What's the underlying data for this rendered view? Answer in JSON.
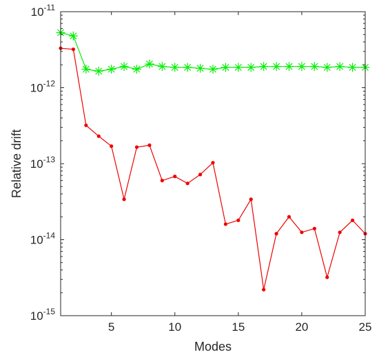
{
  "chart_data": {
    "type": "line",
    "title": "",
    "xlabel": "Modes",
    "ylabel": "Relative drift",
    "xlim": [
      1,
      25
    ],
    "ylim": [
      1e-15,
      1e-11
    ],
    "yscale": "log",
    "grid": false,
    "legend": "none",
    "x_ticks": [
      5,
      10,
      15,
      20,
      25
    ],
    "x_tick_labels": [
      "5",
      "10",
      "15",
      "20",
      "25"
    ],
    "y_ticks": [
      1e-15,
      1e-14,
      1e-13,
      1e-12,
      1e-11
    ],
    "y_tick_labels": [
      {
        "base": "10",
        "exp": "-15"
      },
      {
        "base": "10",
        "exp": "-14"
      },
      {
        "base": "10",
        "exp": "-13"
      },
      {
        "base": "10",
        "exp": "-12"
      },
      {
        "base": "10",
        "exp": "-11"
      }
    ],
    "x": [
      1,
      2,
      3,
      4,
      5,
      6,
      7,
      8,
      9,
      10,
      11,
      12,
      13,
      14,
      15,
      16,
      17,
      18,
      19,
      20,
      21,
      22,
      23,
      24,
      25
    ],
    "series": [
      {
        "color": "#00ee00",
        "marker": "asterisk",
        "values": [
          5.3e-12,
          4.8e-12,
          1.75e-12,
          1.65e-12,
          1.75e-12,
          1.9e-12,
          1.75e-12,
          2.05e-12,
          1.9e-12,
          1.85e-12,
          1.85e-12,
          1.8e-12,
          1.75e-12,
          1.85e-12,
          1.85e-12,
          1.85e-12,
          1.9e-12,
          1.9e-12,
          1.9e-12,
          1.9e-12,
          1.9e-12,
          1.85e-12,
          1.9e-12,
          1.85e-12,
          1.85e-12
        ]
      },
      {
        "color": "#ee0000",
        "marker": "dot",
        "values": [
          3.3e-12,
          3.2e-12,
          3.2e-13,
          2.3e-13,
          1.7e-13,
          3.4e-14,
          1.65e-13,
          1.75e-13,
          6e-14,
          6.8e-14,
          5.5e-14,
          7.2e-14,
          1.03e-13,
          1.6e-14,
          1.8e-14,
          3.4e-14,
          2.2e-15,
          1.2e-14,
          2e-14,
          1.25e-14,
          1.4e-14,
          3.2e-15,
          1.25e-14,
          1.8e-14,
          1.2e-14
        ]
      }
    ]
  }
}
